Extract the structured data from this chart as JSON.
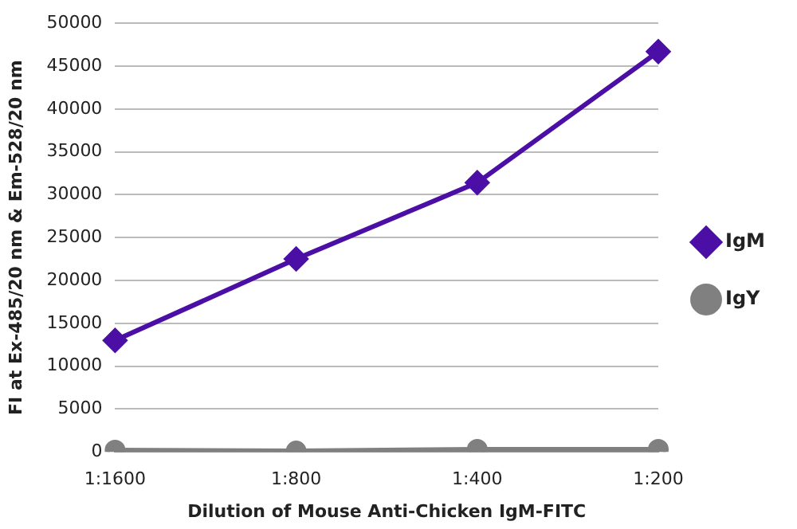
{
  "chart_data": {
    "type": "line",
    "xlabel": "Dilution of Mouse Anti-Chicken IgM-FITC",
    "ylabel": "FI at Ex-485/20 nm & Em-528/20 nm",
    "categories": [
      "1:1600",
      "1:800",
      "1:400",
      "1:200"
    ],
    "series": [
      {
        "name": "IgM",
        "color": "#4b0fa6",
        "values": [
          13000,
          22500,
          31400,
          46700
        ],
        "marker": "diamond"
      },
      {
        "name": "IgY",
        "color": "#808080",
        "values": [
          200,
          100,
          300,
          300
        ],
        "marker": "circle"
      }
    ],
    "ylim": [
      0,
      50000
    ],
    "yticks": [
      0,
      5000,
      10000,
      15000,
      20000,
      25000,
      30000,
      35000,
      40000,
      45000,
      50000
    ],
    "grid": "y",
    "legend": "right"
  }
}
